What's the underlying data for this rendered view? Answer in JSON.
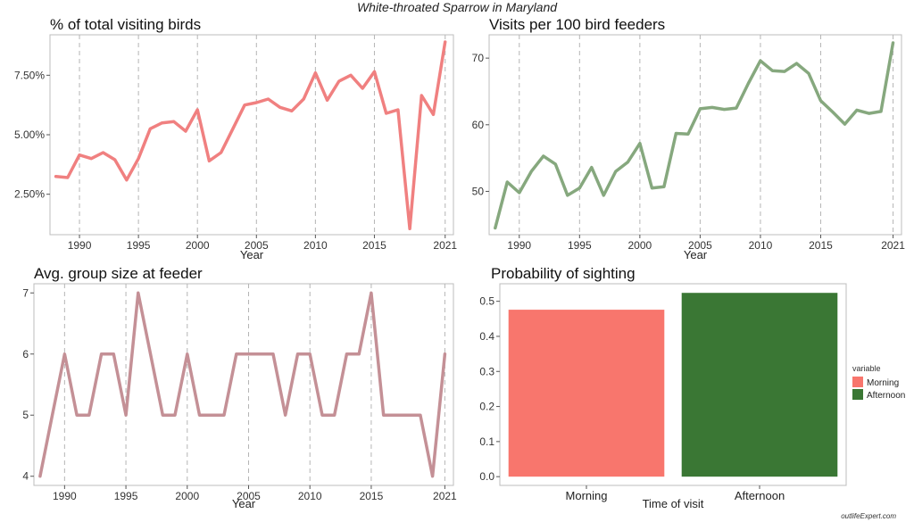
{
  "title": "White-throated Sparrow in Maryland",
  "watermark": "outlifeExpert.com",
  "chart_data": [
    {
      "type": "line",
      "title": "% of total visiting birds",
      "xlabel": "Year",
      "ylabel": "",
      "color": "#f08080",
      "grid": "vertical dashed at x ticks",
      "xlim": [
        1987.5,
        2021.7
      ],
      "ylim": [
        0.8,
        9.2
      ],
      "xticks": [
        1990,
        1995,
        2000,
        2005,
        2010,
        2015,
        2021
      ],
      "yticks": [
        2.5,
        5.0,
        7.5
      ],
      "ytick_labels": [
        "2.50%",
        "5.00%",
        "7.50%"
      ],
      "x": [
        1988,
        1989,
        1990,
        1991,
        1992,
        1993,
        1994,
        1995,
        1996,
        1997,
        1998,
        1999,
        2000,
        2001,
        2002,
        2003,
        2004,
        2005,
        2006,
        2007,
        2008,
        2009,
        2010,
        2011,
        2012,
        2013,
        2014,
        2015,
        2016,
        2017,
        2018,
        2019,
        2020,
        2021
      ],
      "y": [
        3.25,
        3.2,
        4.15,
        4.0,
        4.25,
        3.95,
        3.1,
        4.0,
        5.25,
        5.5,
        5.55,
        5.15,
        6.05,
        3.9,
        4.25,
        5.25,
        6.25,
        6.35,
        6.5,
        6.15,
        6.0,
        6.5,
        7.6,
        6.45,
        7.25,
        7.5,
        6.95,
        7.65,
        5.9,
        6.05,
        1.05,
        6.65,
        5.85,
        8.9
      ]
    },
    {
      "type": "line",
      "title": "Visits per 100 bird feeders",
      "xlabel": "Year",
      "ylabel": "",
      "color": "#86a87e",
      "grid": "vertical dashed at x ticks",
      "xlim": [
        1987.5,
        2021.7
      ],
      "ylim": [
        43.5,
        73.5
      ],
      "xticks": [
        1990,
        1995,
        2000,
        2005,
        2010,
        2015,
        2021
      ],
      "yticks": [
        50,
        60,
        70
      ],
      "ytick_labels": [
        "50",
        "60",
        "70"
      ],
      "x": [
        1988,
        1989,
        1990,
        1991,
        1992,
        1993,
        1994,
        1995,
        1996,
        1997,
        1998,
        1999,
        2000,
        2001,
        2002,
        2003,
        2004,
        2005,
        2006,
        2007,
        2008,
        2009,
        2010,
        2011,
        2012,
        2013,
        2014,
        2015,
        2016,
        2017,
        2018,
        2019,
        2020,
        2021
      ],
      "y": [
        44.5,
        51.4,
        49.8,
        53.0,
        55.3,
        54.1,
        49.4,
        50.5,
        53.6,
        49.4,
        53.0,
        54.4,
        57.2,
        50.5,
        50.7,
        58.7,
        58.6,
        62.4,
        62.6,
        62.3,
        62.5,
        66.2,
        69.6,
        68.1,
        68.0,
        69.2,
        67.7,
        63.6,
        61.9,
        60.1,
        62.2,
        61.7,
        62.0,
        72.3
      ]
    },
    {
      "type": "line",
      "title": "Avg. group size at feeder",
      "xlabel": "Year",
      "ylabel": "",
      "color": "#c49096",
      "grid": "vertical dashed at x ticks",
      "xlim": [
        1987.5,
        2021.7
      ],
      "ylim": [
        3.85,
        7.15
      ],
      "xticks": [
        1990,
        1995,
        2000,
        2005,
        2010,
        2015,
        2021
      ],
      "yticks": [
        4,
        5,
        6,
        7
      ],
      "ytick_labels": [
        "4",
        "5",
        "6",
        "7"
      ],
      "x": [
        1988,
        1989,
        1990,
        1991,
        1992,
        1993,
        1994,
        1995,
        1996,
        1997,
        1998,
        1999,
        2000,
        2001,
        2002,
        2003,
        2004,
        2005,
        2006,
        2007,
        2008,
        2009,
        2010,
        2011,
        2012,
        2013,
        2014,
        2015,
        2016,
        2017,
        2018,
        2019,
        2020,
        2021
      ],
      "y": [
        4,
        5,
        6,
        5,
        5,
        6,
        6,
        5,
        7,
        6,
        5,
        5,
        6,
        5,
        5,
        5,
        6,
        6,
        6,
        6,
        5,
        6,
        6,
        5,
        5,
        6,
        6,
        7,
        5,
        5,
        5,
        5,
        4,
        6
      ]
    },
    {
      "type": "bar",
      "title": "Probability of sighting",
      "xlabel": "Time of visit",
      "ylabel": "",
      "categories": [
        "Morning",
        "Afternoon"
      ],
      "values": [
        0.476,
        0.524
      ],
      "colors": [
        "#f8766d",
        "#3a7734"
      ],
      "ylim": [
        -0.025,
        0.55
      ],
      "yticks": [
        0.0,
        0.1,
        0.2,
        0.3,
        0.4,
        0.5
      ],
      "ytick_labels": [
        "0.0",
        "0.1",
        "0.2",
        "0.3",
        "0.4",
        "0.5"
      ],
      "legend": {
        "title": "variable",
        "position": "right",
        "entries": [
          "Morning",
          "Afternoon"
        ]
      }
    }
  ]
}
